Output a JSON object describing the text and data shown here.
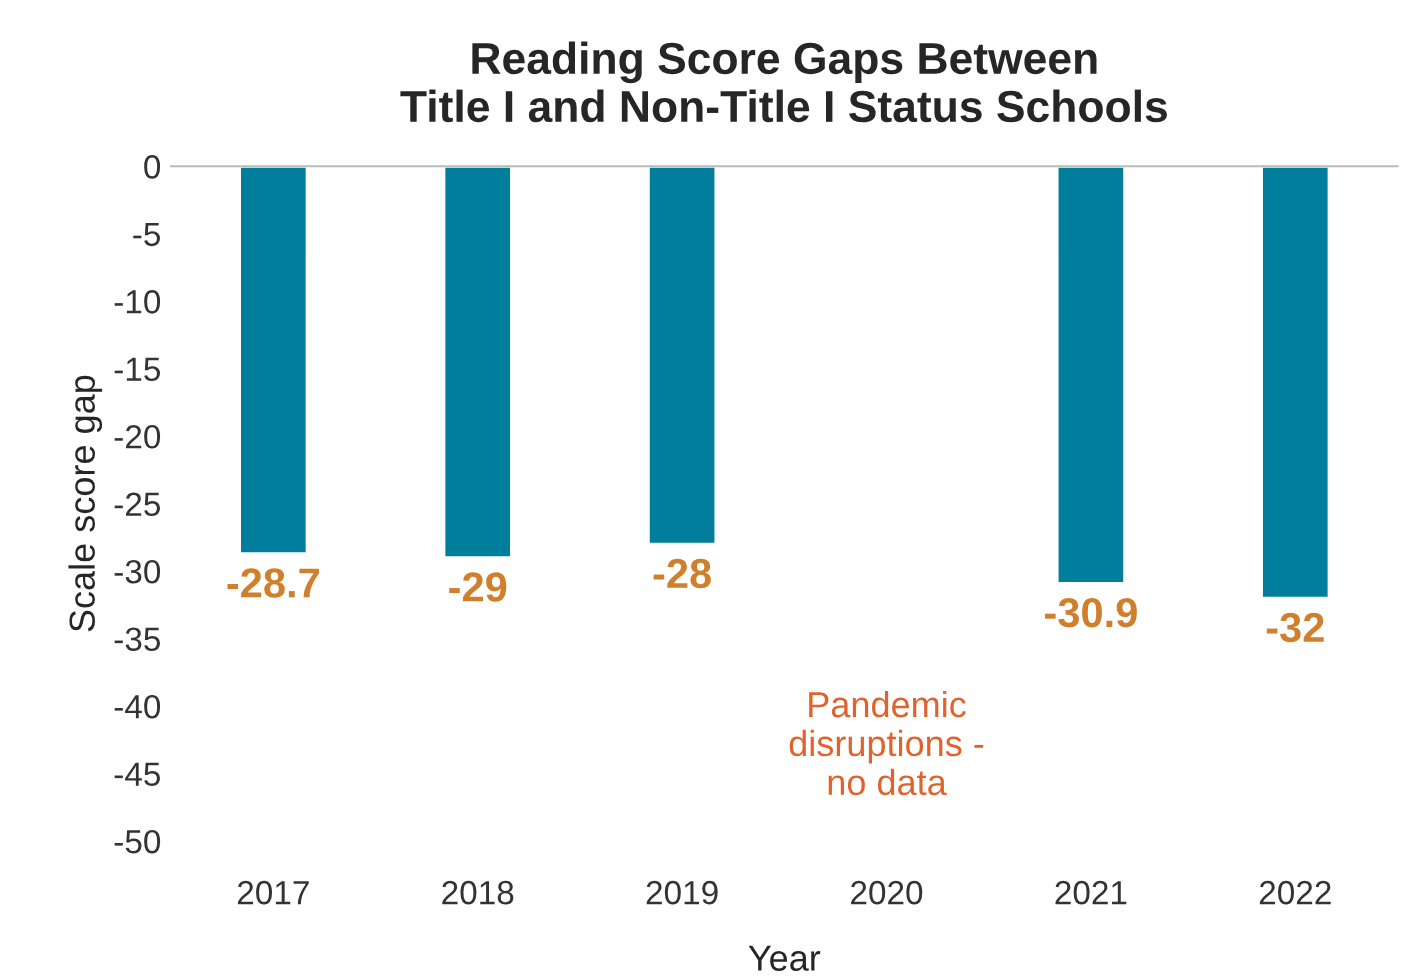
{
  "chart_data": {
    "type": "bar",
    "title": "Reading Score Gaps Between\nTitle I and Non-Title I Status Schools",
    "xlabel": "Year",
    "ylabel": "Scale score gap",
    "categories": [
      "2017",
      "2018",
      "2019",
      "2020",
      "2021",
      "2022"
    ],
    "values": [
      -28.7,
      -29,
      -28,
      null,
      -30.9,
      -32
    ],
    "color": "#007e9b",
    "ylim": [
      -50,
      0
    ],
    "yticks": [
      -50,
      -45,
      -40,
      -35,
      -30,
      -25,
      -20,
      -15,
      -10,
      -5,
      0
    ],
    "data_labels": true,
    "grid": false,
    "legend": false,
    "annotations": [
      "Pandemic\ndisruptions -\nno data"
    ]
  }
}
